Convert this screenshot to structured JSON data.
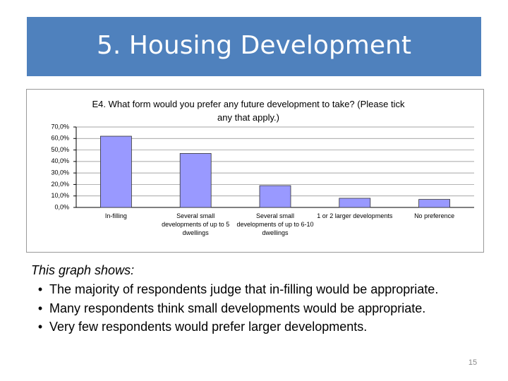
{
  "header": {
    "title": "5. Housing Development"
  },
  "chart_data": {
    "type": "bar",
    "title": "E4. What form would you prefer any future development to take? (Please tick any that apply.)",
    "categories": [
      "In-filling",
      "Several small developments of up to 5 dwellings",
      "Several small developments of up to 6-10 dwellings",
      "1 or 2 larger developments",
      "No preference"
    ],
    "values": [
      62,
      47,
      19,
      8,
      7
    ],
    "color": "#9999ff",
    "ylim": [
      0,
      70
    ],
    "yticks": [
      {
        "value": 0,
        "label": "0,0%"
      },
      {
        "value": 10,
        "label": "10,0%"
      },
      {
        "value": 20,
        "label": "20,0%"
      },
      {
        "value": 30,
        "label": "30,0%"
      },
      {
        "value": 40,
        "label": "40,0%"
      },
      {
        "value": 50,
        "label": "50,0%"
      },
      {
        "value": 60,
        "label": "60,0%"
      },
      {
        "value": 70,
        "label": "70,0%"
      }
    ],
    "grid": true
  },
  "body": {
    "heading": "This graph shows:",
    "bullets": [
      "The majority of respondents judge that in-filling would be appropriate.",
      "Many respondents think small developments would be appropriate.",
      "Very few respondents would prefer larger developments."
    ]
  },
  "page_number": 15
}
